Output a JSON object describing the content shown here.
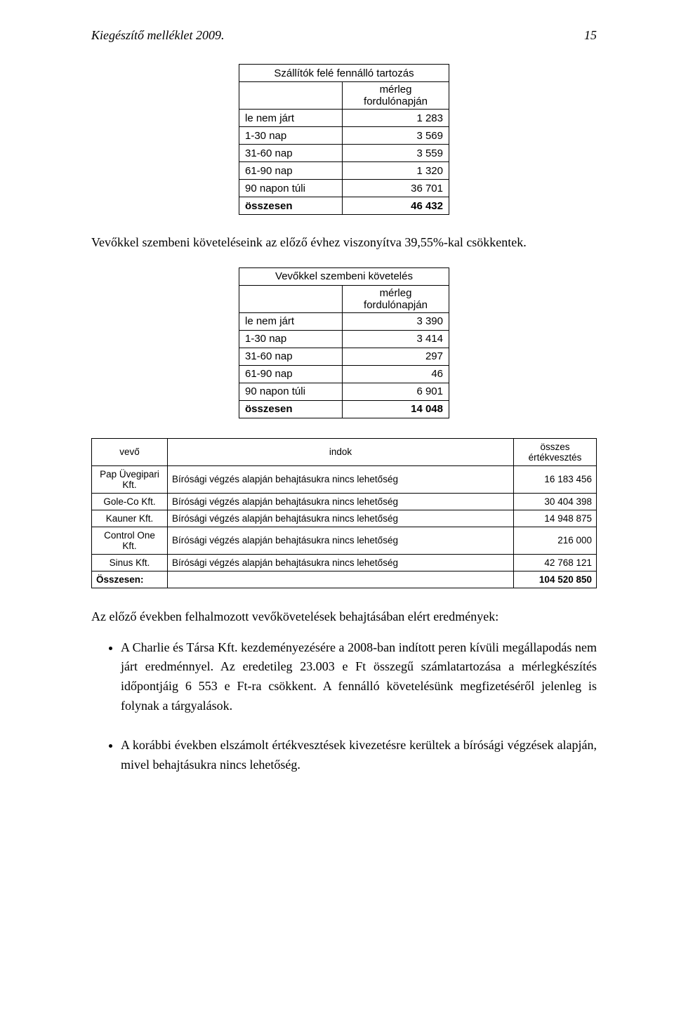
{
  "header": {
    "title": "Kiegészítő melléklet 2009.",
    "page_number": "15"
  },
  "table1": {
    "title": "Szállítók felé fennálló tartozás",
    "subhead": "mérleg fordulónapján",
    "rows": [
      {
        "label": "le nem járt",
        "value": "1 283"
      },
      {
        "label": "1-30 nap",
        "value": "3 569"
      },
      {
        "label": "31-60 nap",
        "value": "3 559"
      },
      {
        "label": "61-90 nap",
        "value": "1 320"
      },
      {
        "label": "90 napon túli",
        "value": "36 701"
      }
    ],
    "total": {
      "label": "összesen",
      "value": "46 432"
    }
  },
  "para1": "Vevőkkel szembeni követeléseink az előző évhez viszonyítva 39,55%-kal csökkentek.",
  "table2": {
    "title": "Vevőkkel szembeni követelés",
    "subhead": "mérleg fordulónapján",
    "rows": [
      {
        "label": "le nem járt",
        "value": "3 390"
      },
      {
        "label": "1-30 nap",
        "value": "3 414"
      },
      {
        "label": "31-60 nap",
        "value": "297"
      },
      {
        "label": "61-90 nap",
        "value": "46"
      },
      {
        "label": "90 napon túli",
        "value": "6 901"
      }
    ],
    "total": {
      "label": "összesen",
      "value": "14 048"
    }
  },
  "vevo_table": {
    "headers": {
      "vevo": "vevő",
      "indok": "indok",
      "ertek": "összes értékvesztés"
    },
    "rows": [
      {
        "vevo": "Pap Üvegipari Kft.",
        "indok": "Bírósági végzés alapján behajtásukra nincs lehetőség",
        "ertek": "16 183 456"
      },
      {
        "vevo": "Gole-Co Kft.",
        "indok": "Bírósági végzés alapján behajtásukra nincs lehetőség",
        "ertek": "30 404 398"
      },
      {
        "vevo": "Kauner Kft.",
        "indok": "Bírósági végzés alapján behajtásukra nincs lehetőség",
        "ertek": "14 948 875"
      },
      {
        "vevo": "Control One Kft.",
        "indok": "Bírósági végzés alapján behajtásukra nincs lehetőség",
        "ertek": "216 000"
      },
      {
        "vevo": "Sinus Kft.",
        "indok": "Bírósági végzés alapján behajtásukra nincs lehetőség",
        "ertek": "42 768 121"
      }
    ],
    "total": {
      "label": "Összesen:",
      "value": "104 520 850"
    }
  },
  "subtitle": "Az előző években felhalmozott vevőkövetelések behajtásában elért eredmények:",
  "bullets": [
    "A Charlie és Társa Kft. kezdeményezésére a 2008-ban indított peren kívüli megállapodás nem járt eredménnyel. Az eredetileg 23.003 e Ft összegű számlatartozása a mérlegkészítés időpontjáig 6 553 e Ft-ra csökkent. A fennálló követelésünk megfizetéséről jelenleg is folynak a tárgyalások.",
    "A korábbi években elszámolt értékvesztések kivezetésre kerültek a bírósági végzések alapján, mivel behajtásukra nincs lehetőség."
  ]
}
